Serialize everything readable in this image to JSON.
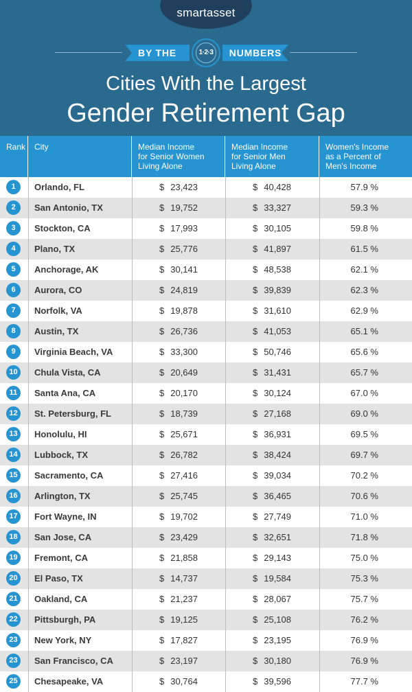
{
  "brand": "smartasset",
  "ribbon": {
    "left": "BY THE",
    "badge": "1·2·3",
    "right": "NUMBERS"
  },
  "title": {
    "line1": "Cities With the Largest",
    "line2": "Gender Retirement Gap"
  },
  "colors": {
    "header_bg": "#2b6a8f",
    "accent": "#2594d1",
    "logo_bg": "#1f3f5c",
    "row_alt": "#e3e3e3"
  },
  "chart_data": {
    "type": "table",
    "title": "Cities With the Largest Gender Retirement Gap",
    "columns": [
      "Rank",
      "City",
      "Median Income for Senior Women Living Alone",
      "Median Income for Senior Men Living Alone",
      "Women's Income as a Percent of Men's Income"
    ],
    "column_lines": [
      [
        "Rank"
      ],
      [
        "City"
      ],
      [
        "Median Income",
        "for Senior Women",
        "Living Alone"
      ],
      [
        "Median Income",
        "for Senior Men",
        "Living Alone"
      ],
      [
        "Women's Income",
        "as a Percent of",
        "Men's Income"
      ]
    ],
    "rows": [
      {
        "rank": "1",
        "city": "Orlando, FL",
        "women": "23,423",
        "men": "40,428",
        "pct": "57.9 %"
      },
      {
        "rank": "2",
        "city": "San Antonio, TX",
        "women": "19,752",
        "men": "33,327",
        "pct": "59.3 %"
      },
      {
        "rank": "3",
        "city": "Stockton, CA",
        "women": "17,993",
        "men": "30,105",
        "pct": "59.8 %"
      },
      {
        "rank": "4",
        "city": "Plano, TX",
        "women": "25,776",
        "men": "41,897",
        "pct": "61.5 %"
      },
      {
        "rank": "5",
        "city": "Anchorage, AK",
        "women": "30,141",
        "men": "48,538",
        "pct": "62.1 %"
      },
      {
        "rank": "6",
        "city": "Aurora, CO",
        "women": "24,819",
        "men": "39,839",
        "pct": "62.3 %"
      },
      {
        "rank": "7",
        "city": "Norfolk, VA",
        "women": "19,878",
        "men": "31,610",
        "pct": "62.9 %"
      },
      {
        "rank": "8",
        "city": "Austin, TX",
        "women": "26,736",
        "men": "41,053",
        "pct": "65.1 %"
      },
      {
        "rank": "9",
        "city": "Virginia Beach, VA",
        "women": "33,300",
        "men": "50,746",
        "pct": "65.6 %"
      },
      {
        "rank": "10",
        "city": "Chula Vista, CA",
        "women": "20,649",
        "men": "31,431",
        "pct": "65.7 %"
      },
      {
        "rank": "11",
        "city": "Santa Ana, CA",
        "women": "20,170",
        "men": "30,124",
        "pct": "67.0 %"
      },
      {
        "rank": "12",
        "city": "St. Petersburg, FL",
        "women": "18,739",
        "men": "27,168",
        "pct": "69.0 %"
      },
      {
        "rank": "13",
        "city": "Honolulu, HI",
        "women": "25,671",
        "men": "36,931",
        "pct": "69.5 %"
      },
      {
        "rank": "14",
        "city": "Lubbock, TX",
        "women": "26,782",
        "men": "38,424",
        "pct": "69.7 %"
      },
      {
        "rank": "15",
        "city": "Sacramento, CA",
        "women": "27,416",
        "men": "39,034",
        "pct": "70.2 %"
      },
      {
        "rank": "16",
        "city": "Arlington, TX",
        "women": "25,745",
        "men": "36,465",
        "pct": "70.6 %"
      },
      {
        "rank": "17",
        "city": "Fort Wayne, IN",
        "women": "19,702",
        "men": "27,749",
        "pct": "71.0 %"
      },
      {
        "rank": "18",
        "city": "San Jose, CA",
        "women": "23,429",
        "men": "32,651",
        "pct": "71.8 %"
      },
      {
        "rank": "19",
        "city": "Fremont, CA",
        "women": "21,858",
        "men": "29,143",
        "pct": "75.0 %"
      },
      {
        "rank": "20",
        "city": "El Paso, TX",
        "women": "14,737",
        "men": "19,584",
        "pct": "75.3 %"
      },
      {
        "rank": "21",
        "city": "Oakland, CA",
        "women": "21,237",
        "men": "28,067",
        "pct": "75.7 %"
      },
      {
        "rank": "22",
        "city": "Pittsburgh, PA",
        "women": "19,125",
        "men": "25,108",
        "pct": "76.2 %"
      },
      {
        "rank": "23",
        "city": "New York, NY",
        "women": "17,827",
        "men": "23,195",
        "pct": "76.9 %"
      },
      {
        "rank": "23",
        "city": "San Francisco, CA",
        "women": "23,197",
        "men": "30,180",
        "pct": "76.9 %"
      },
      {
        "rank": "25",
        "city": "Chesapeake, VA",
        "women": "30,764",
        "men": "39,596",
        "pct": "77.7 %"
      }
    ]
  }
}
